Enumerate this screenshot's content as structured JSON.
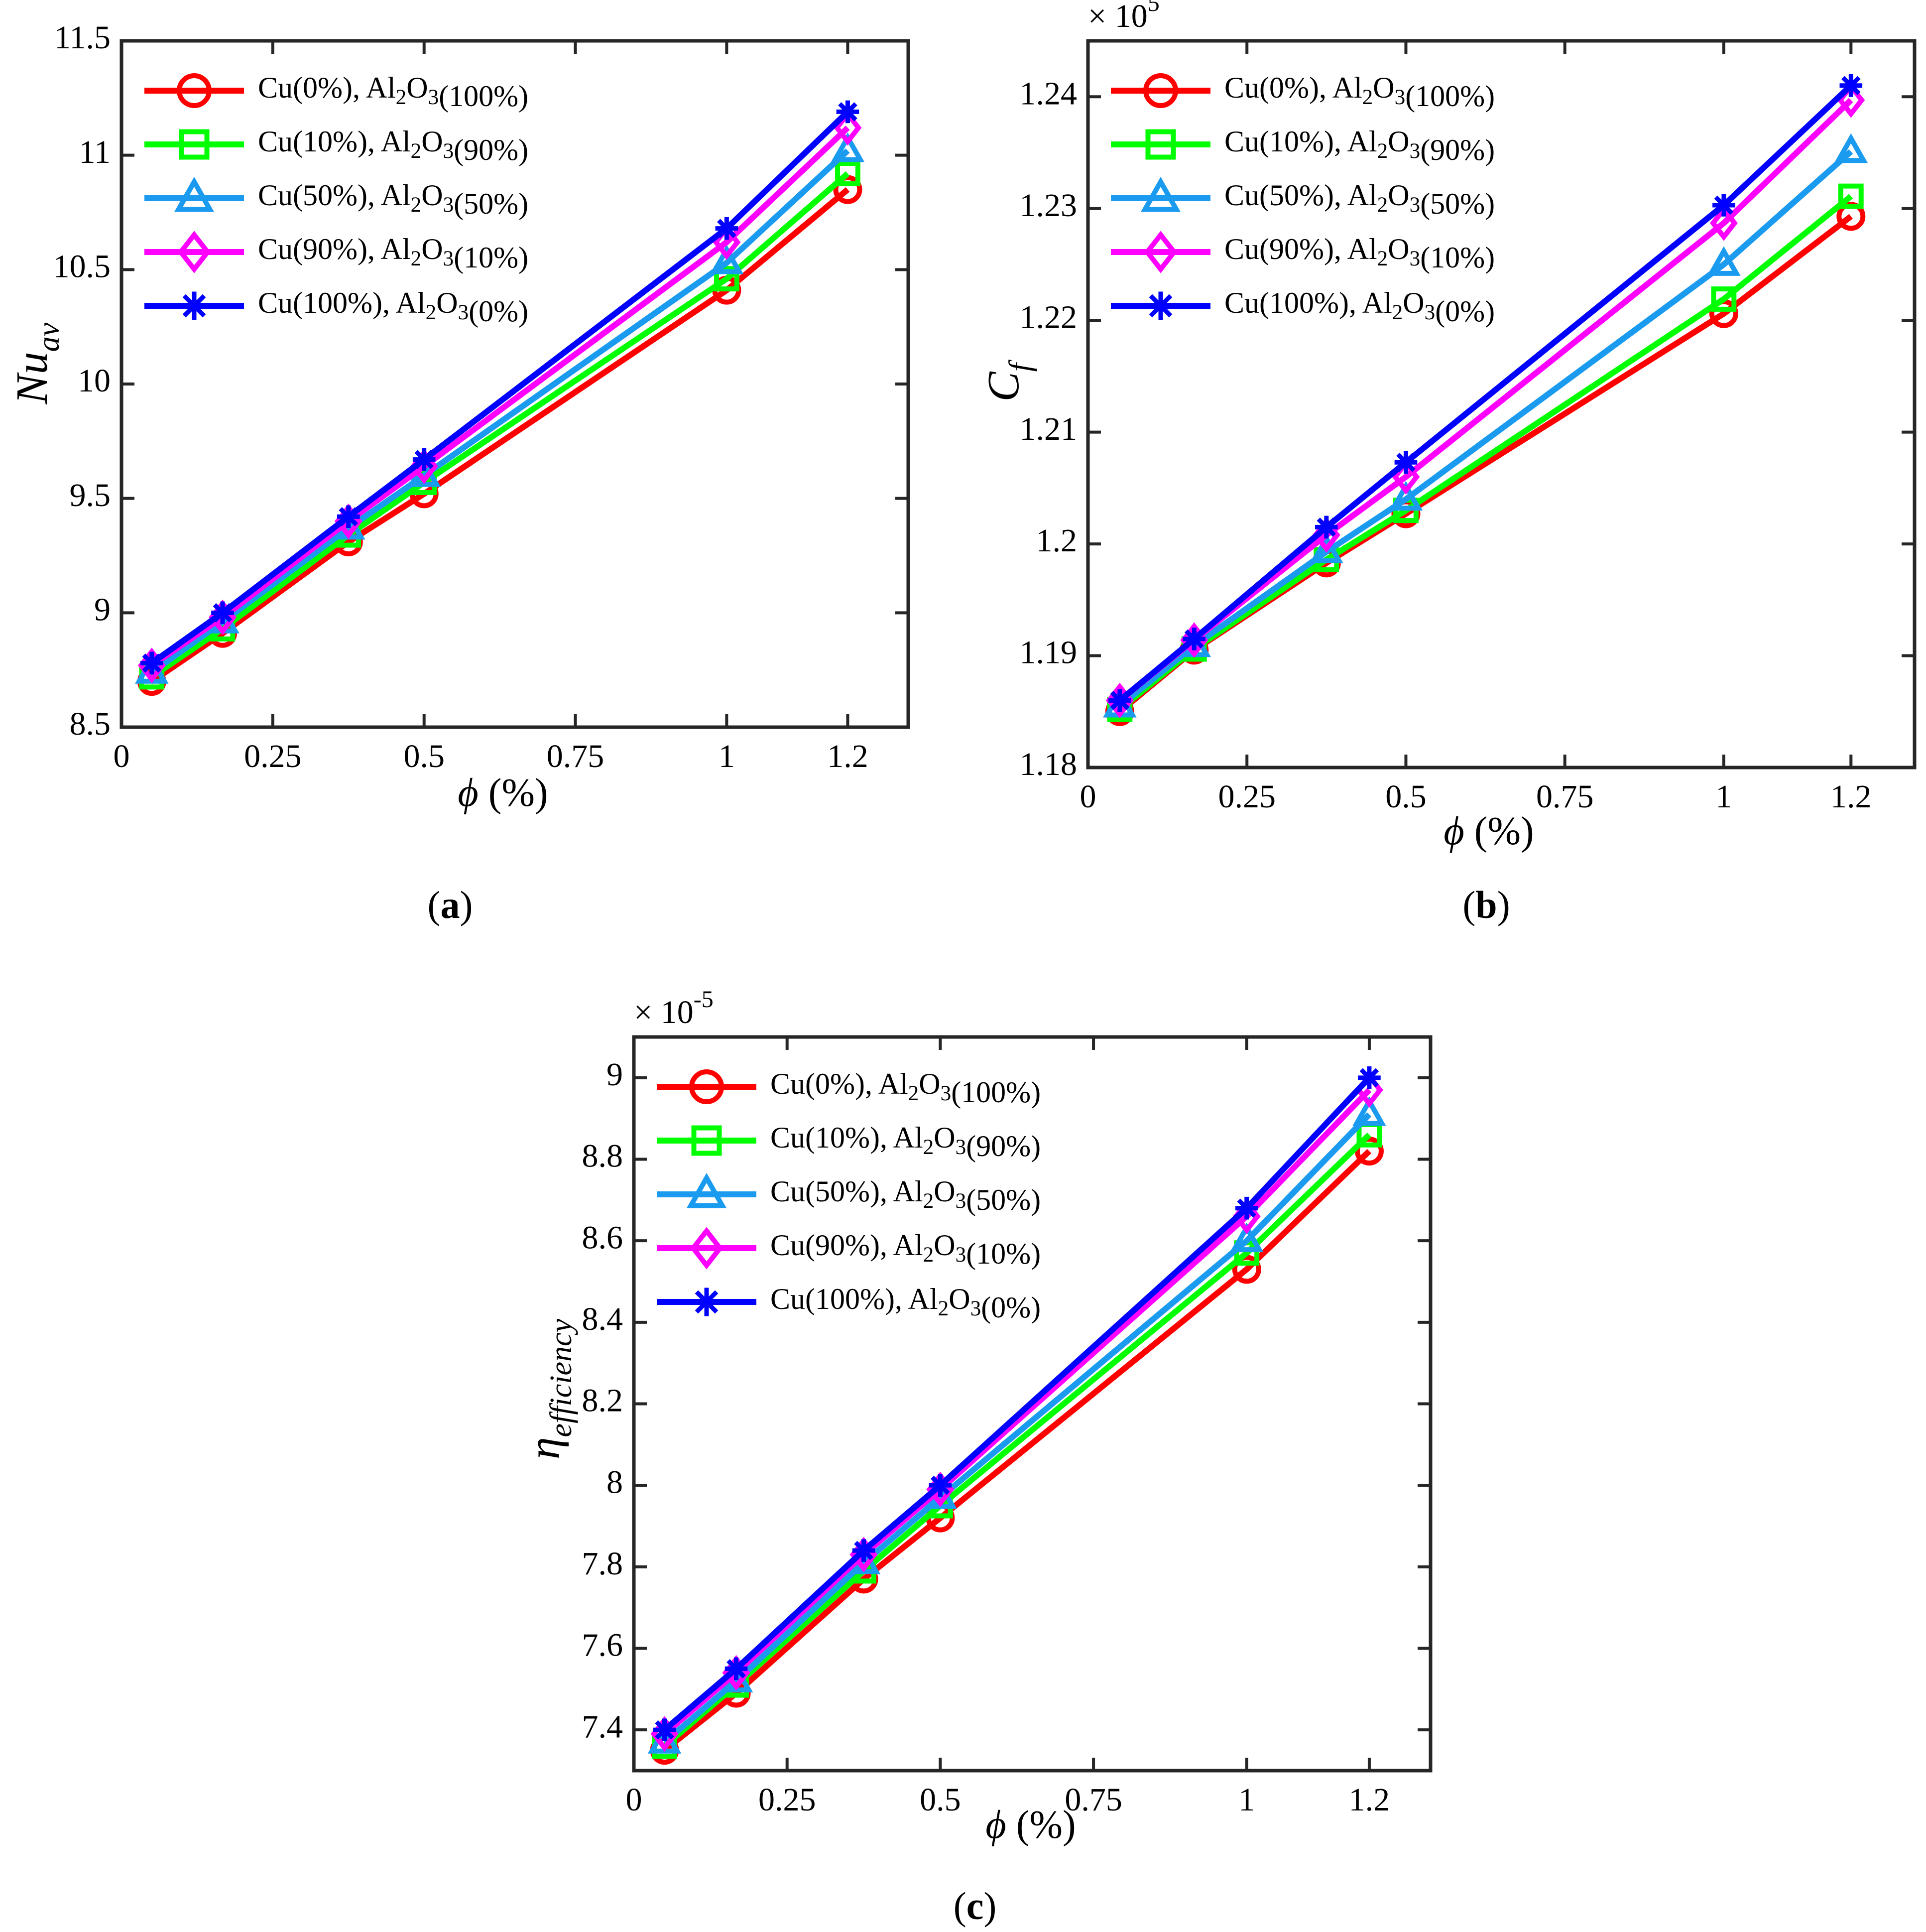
{
  "chart_data": [
    {
      "type": "line",
      "caption": "a",
      "ylabel_main": "Nu",
      "ylabel_sub": "av",
      "xlabel_sym": "ϕ",
      "xlabel_rest": " (%)",
      "multiplier_base": "",
      "multiplier_exp": "",
      "xlim": [
        0,
        1.3
      ],
      "ylim": [
        8.5,
        11.5
      ],
      "xticks": [
        0,
        0.25,
        0.5,
        0.75,
        1,
        1.2
      ],
      "xtick_labels": [
        "0",
        "0.25",
        "0.5",
        "0.75",
        "1",
        "1.2"
      ],
      "yticks": [
        8.5,
        9,
        9.5,
        10,
        10.5,
        11,
        11.5
      ],
      "ytick_labels": [
        "8.5",
        "9",
        "9.5",
        "10",
        "10.5",
        "11",
        "11.5"
      ],
      "legend_position": "top-left",
      "x": [
        0.05,
        0.167,
        0.375,
        0.5,
        1,
        1.2
      ],
      "series": [
        {
          "name": "Cu(0%), Al2O3(100%)",
          "marker": "circle",
          "color": "#ff0000",
          "values": [
            8.7,
            8.91,
            9.31,
            9.52,
            10.41,
            10.85
          ]
        },
        {
          "name": "Cu(10%), Al2O3(90%)",
          "marker": "square",
          "color": "#00ff00",
          "values": [
            8.72,
            8.93,
            9.34,
            9.57,
            10.46,
            10.92
          ]
        },
        {
          "name": "Cu(50%), Al2O3(50%)",
          "marker": "triangle",
          "color": "#1a9bf0",
          "values": [
            8.74,
            8.96,
            9.37,
            9.6,
            10.53,
            11.02
          ]
        },
        {
          "name": "Cu(90%), Al2O3(10%)",
          "marker": "diamond",
          "color": "#ff00ff",
          "values": [
            8.77,
            8.98,
            9.4,
            9.64,
            10.62,
            11.12
          ]
        },
        {
          "name": "Cu(100%), Al2O3(0%)",
          "marker": "asterisk",
          "color": "#0000ff",
          "values": [
            8.78,
            9.0,
            9.42,
            9.67,
            10.68,
            11.19
          ]
        }
      ]
    },
    {
      "type": "line",
      "caption": "b",
      "ylabel_main": "C",
      "ylabel_sub": "f",
      "xlabel_sym": "ϕ",
      "xlabel_rest": " (%)",
      "multiplier_base": "× 10",
      "multiplier_exp": "5",
      "xlim": [
        0,
        1.3
      ],
      "ylim": [
        1.18,
        1.245
      ],
      "xticks": [
        0,
        0.25,
        0.5,
        0.75,
        1,
        1.2
      ],
      "xtick_labels": [
        "0",
        "0.25",
        "0.5",
        "0.75",
        "1",
        "1.2"
      ],
      "yticks": [
        1.18,
        1.19,
        1.2,
        1.21,
        1.22,
        1.23,
        1.24
      ],
      "ytick_labels": [
        "1.18",
        "1.19",
        "1.2",
        "1.21",
        "1.22",
        "1.23",
        "1.24"
      ],
      "legend_position": "top-left",
      "x": [
        0.05,
        0.167,
        0.375,
        0.5,
        1,
        1.2
      ],
      "series": [
        {
          "name": "Cu(0%), Al2O3(100%)",
          "marker": "circle",
          "color": "#ff0000",
          "values": [
            1.185,
            1.1905,
            1.1983,
            1.2027,
            1.2206,
            1.2293
          ]
        },
        {
          "name": "Cu(10%), Al2O3(90%)",
          "marker": "square",
          "color": "#00ff00",
          "values": [
            1.1852,
            1.1906,
            1.1986,
            1.203,
            1.2219,
            1.2311
          ]
        },
        {
          "name": "Cu(50%), Al2O3(50%)",
          "marker": "triangle",
          "color": "#1a9bf0",
          "values": [
            1.1855,
            1.1909,
            1.1993,
            1.204,
            1.225,
            1.2351
          ]
        },
        {
          "name": "Cu(90%), Al2O3(10%)",
          "marker": "diamond",
          "color": "#ff00ff",
          "values": [
            1.186,
            1.1914,
            1.2008,
            1.206,
            1.2287,
            1.2397
          ]
        },
        {
          "name": "Cu(100%), Al2O3(0%)",
          "marker": "asterisk",
          "color": "#0000ff",
          "values": [
            1.186,
            1.1915,
            1.2015,
            1.2073,
            1.2303,
            1.241
          ]
        }
      ]
    },
    {
      "type": "line",
      "caption": "c",
      "ylabel_main": "η",
      "ylabel_sub": "efficiency",
      "xlabel_sym": "ϕ",
      "xlabel_rest": " (%)",
      "multiplier_base": "× 10",
      "multiplier_exp": "-5",
      "xlim": [
        0,
        1.3
      ],
      "ylim": [
        7.3,
        9.1
      ],
      "xticks": [
        0,
        0.25,
        0.5,
        0.75,
        1,
        1.2
      ],
      "xtick_labels": [
        "0",
        "0.25",
        "0.5",
        "0.75",
        "1",
        "1.2"
      ],
      "yticks": [
        7.4,
        7.6,
        7.8,
        8,
        8.2,
        8.4,
        8.6,
        8.8,
        9
      ],
      "ytick_labels": [
        "7.4",
        "7.6",
        "7.8",
        "8",
        "8.2",
        "8.4",
        "8.6",
        "8.8",
        "9"
      ],
      "legend_position": "top-left",
      "x": [
        0.05,
        0.167,
        0.375,
        0.5,
        1,
        1.2
      ],
      "series": [
        {
          "name": "Cu(0%), Al2O3(100%)",
          "marker": "circle",
          "color": "#ff0000",
          "values": [
            7.35,
            7.49,
            7.77,
            7.92,
            8.53,
            8.82
          ]
        },
        {
          "name": "Cu(10%), Al2O3(90%)",
          "marker": "square",
          "color": "#00ff00",
          "values": [
            7.36,
            7.51,
            7.79,
            7.95,
            8.57,
            8.86
          ]
        },
        {
          "name": "Cu(50%), Al2O3(50%)",
          "marker": "triangle",
          "color": "#1a9bf0",
          "values": [
            7.37,
            7.52,
            7.81,
            7.97,
            8.6,
            8.91
          ]
        },
        {
          "name": "Cu(90%), Al2O3(10%)",
          "marker": "diamond",
          "color": "#ff00ff",
          "values": [
            7.39,
            7.54,
            7.83,
            7.99,
            8.66,
            8.97
          ]
        },
        {
          "name": "Cu(100%), Al2O3(0%)",
          "marker": "asterisk",
          "color": "#0000ff",
          "values": [
            7.4,
            7.55,
            7.84,
            8.0,
            8.68,
            9.0
          ]
        }
      ]
    }
  ]
}
